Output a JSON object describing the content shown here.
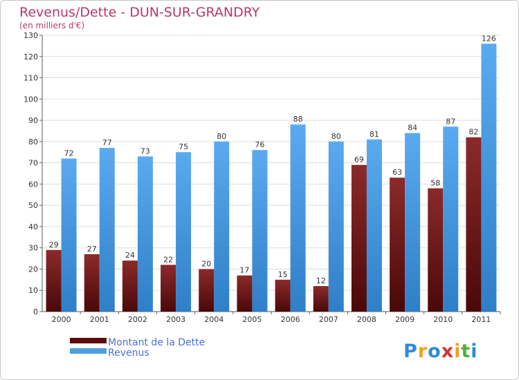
{
  "chart_data": {
    "type": "bar",
    "title": "Revenus/Dette - DUN-SUR-GRANDRY",
    "subtitle": "(en milliers d'€)",
    "categories": [
      "2000",
      "2001",
      "2002",
      "2003",
      "2004",
      "2005",
      "2006",
      "2007",
      "2008",
      "2009",
      "2010",
      "2011"
    ],
    "series": [
      {
        "name": "Montant de la Dette",
        "color": "#7a1f1f",
        "values": [
          29,
          27,
          24,
          22,
          20,
          17,
          15,
          12,
          69,
          63,
          58,
          82
        ]
      },
      {
        "name": "Revenus",
        "color": "#4f9fe0",
        "values": [
          72,
          77,
          73,
          75,
          80,
          76,
          88,
          80,
          81,
          84,
          87,
          126
        ]
      }
    ],
    "ylim": [
      0,
      130
    ],
    "yticks": [
      0,
      10,
      20,
      30,
      40,
      50,
      60,
      70,
      80,
      90,
      100,
      110,
      120,
      130
    ],
    "grid": true,
    "legend_position": "bottom-left"
  },
  "brand": {
    "logo_letters": [
      "P",
      "r",
      "o",
      "x",
      "i",
      "t",
      "i"
    ],
    "logo_colors": [
      "#2e8bd8",
      "#f0a020",
      "#2e8bd8",
      "#d83030",
      "#f0a020",
      "#50b040",
      "#2e8bd8"
    ]
  }
}
